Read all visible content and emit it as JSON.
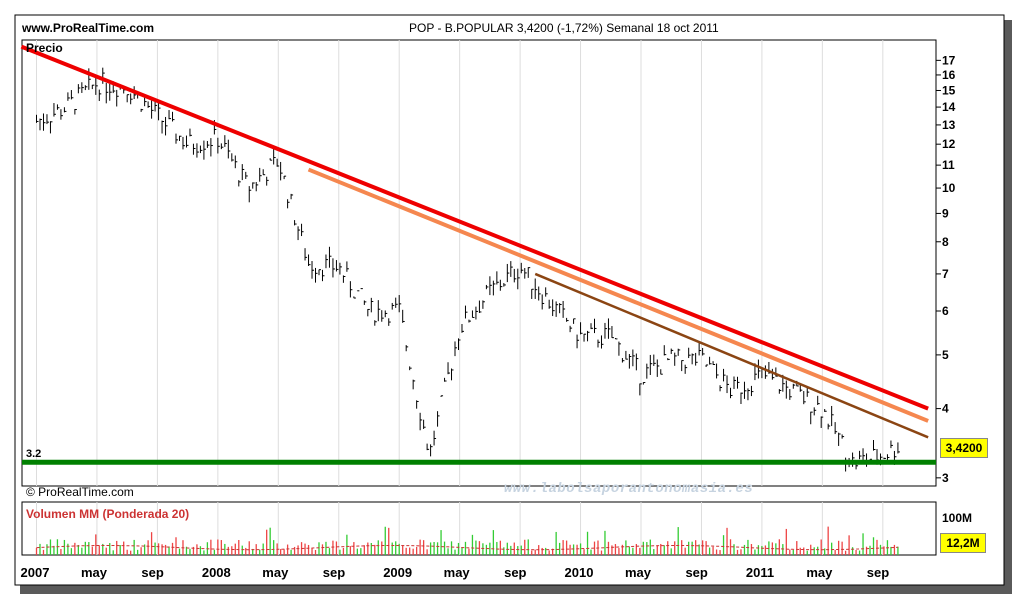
{
  "header": {
    "site": "www.ProRealTime.com",
    "title": "POP - B.POPULAR    3,4200 (-1,72%)    Semanal  18 oct 2011"
  },
  "price_panel": {
    "label": "Precio",
    "current_price": "3,4200",
    "support_label": "3.2",
    "y_ticks": [
      "17",
      "16",
      "15",
      "14",
      "13",
      "12",
      "11",
      "10",
      "9",
      "8",
      "7",
      "6",
      "5",
      "4",
      "3"
    ]
  },
  "volume_panel": {
    "label": "Volumen MM (Ponderada 20)",
    "scale_max": "100M",
    "current_volume": "12,2M"
  },
  "x_labels": [
    "2007",
    "may",
    "sep",
    "2008",
    "may",
    "sep",
    "2009",
    "may",
    "sep",
    "2010",
    "may",
    "sep",
    "2011",
    "may",
    "sep"
  ],
  "footer": {
    "copyright": "© ProRealTime.com",
    "watermark": "www.labolsaporantonomasia.es"
  },
  "colors": {
    "red_trend": "#ee0000",
    "orange_trend": "#f5874f",
    "brown_trend": "#8b4513",
    "support": "#008000",
    "vol_up": "#33cc33",
    "vol_down": "#ee4444",
    "price_bars": "#000000",
    "highlight": "#ffff00"
  },
  "chart_data": {
    "type": "line",
    "title": "POP - B.POPULAR",
    "xlabel": "",
    "ylabel": "Precio",
    "scale": "log",
    "ylim": [
      2.9,
      18.5
    ],
    "x": [
      "2007-01",
      "2007-03",
      "2007-05",
      "2007-07",
      "2007-09",
      "2007-11",
      "2008-01",
      "2008-03",
      "2008-05",
      "2008-07",
      "2008-09",
      "2008-11",
      "2009-01",
      "2009-03",
      "2009-05",
      "2009-07",
      "2009-09",
      "2009-11",
      "2010-01",
      "2010-03",
      "2010-05",
      "2010-07",
      "2010-09",
      "2010-11",
      "2011-01",
      "2011-03",
      "2011-05",
      "2011-07",
      "2011-09",
      "2011-10"
    ],
    "series": [
      {
        "values": [
          13.2,
          14.0,
          15.5,
          15.2,
          13.5,
          12.0,
          12.3,
          10.0,
          11.2,
          7.3,
          7.2,
          6.0,
          6.0,
          3.3,
          5.6,
          6.5,
          7.2,
          6.2,
          5.4,
          5.4,
          4.6,
          4.9,
          4.9,
          4.3,
          4.6,
          4.3,
          4.0,
          3.2,
          3.3,
          3.42
        ]
      }
    ],
    "trendlines": [
      {
        "color": "red",
        "from": [
          "2006-12",
          18.0
        ],
        "to": [
          "2011-12",
          4.0
        ]
      },
      {
        "color": "orange",
        "from": [
          "2008-07",
          10.8
        ],
        "to": [
          "2011-12",
          3.8
        ]
      },
      {
        "color": "brown",
        "from": [
          "2009-10",
          7.0
        ],
        "to": [
          "2011-12",
          3.55
        ]
      }
    ],
    "support_level": 3.2,
    "volume": {
      "label": "Volumen MM (Ponderada 20)",
      "unit": "M",
      "ylim": [
        0,
        100
      ],
      "last": 12.2
    },
    "grid": true,
    "legend": "none"
  }
}
